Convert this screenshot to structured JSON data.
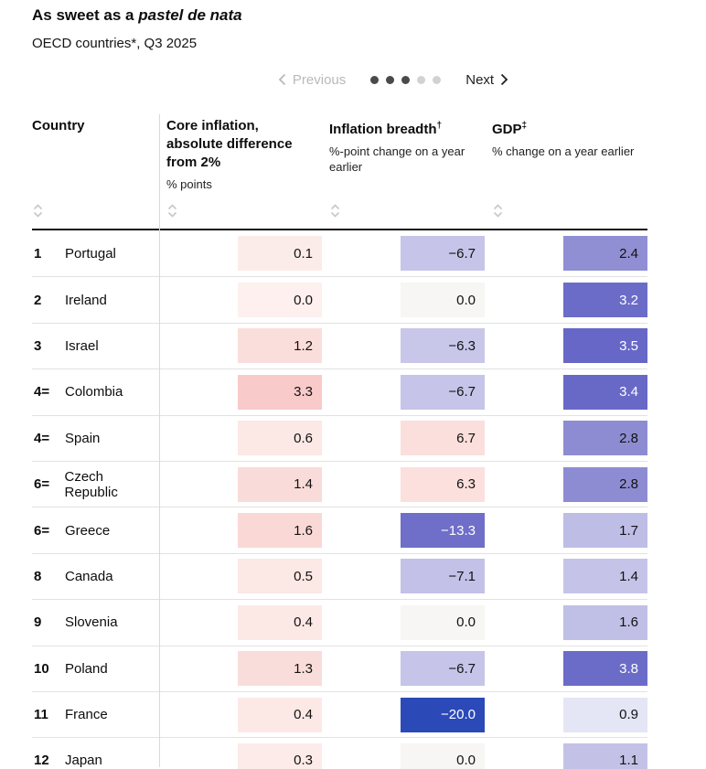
{
  "header": {
    "title_prefix": "As sweet as a ",
    "title_italic": "pastel de nata",
    "subtitle": "OECD countries*, Q3 2025"
  },
  "pagination": {
    "previous_label": "Previous",
    "next_label": "Next",
    "dots": [
      true,
      true,
      true,
      false,
      false
    ]
  },
  "table": {
    "columns": [
      {
        "label": "Country",
        "sublabel": ""
      },
      {
        "label": "Core inflation, absolute difference from 2%",
        "sublabel": "% points"
      },
      {
        "label": "Inflation breadth",
        "superscript": "†",
        "sublabel": "%-point change on a year earlier"
      },
      {
        "label": "GDP",
        "superscript": "‡",
        "sublabel": "% change on a year earlier"
      }
    ],
    "rows": [
      {
        "rank": "1",
        "country": "Portugal",
        "core": {
          "value": "0.1",
          "bg": "#fcece9",
          "fg": "#121212"
        },
        "breadth": {
          "value": "−6.7",
          "bg": "#c6c4e8",
          "fg": "#121212"
        },
        "gdp": {
          "value": "2.4",
          "bg": "#908fd4",
          "fg": "#121212"
        }
      },
      {
        "rank": "2",
        "country": "Ireland",
        "core": {
          "value": "0.0",
          "bg": "#fdf0ee",
          "fg": "#121212"
        },
        "breadth": {
          "value": "0.0",
          "bg": "#f7f6f4",
          "fg": "#121212"
        },
        "gdp": {
          "value": "3.2",
          "bg": "#6b6cc8",
          "fg": "#ffffff"
        }
      },
      {
        "rank": "3",
        "country": "Israel",
        "core": {
          "value": "1.2",
          "bg": "#fadedb",
          "fg": "#121212"
        },
        "breadth": {
          "value": "−6.3",
          "bg": "#c8c6e9",
          "fg": "#121212"
        },
        "gdp": {
          "value": "3.5",
          "bg": "#6667c6",
          "fg": "#ffffff"
        }
      },
      {
        "rank": "4=",
        "country": "Colombia",
        "core": {
          "value": "3.3",
          "bg": "#f8caca",
          "fg": "#121212"
        },
        "breadth": {
          "value": "−6.7",
          "bg": "#c6c4e8",
          "fg": "#121212"
        },
        "gdp": {
          "value": "3.4",
          "bg": "#6869c7",
          "fg": "#ffffff"
        }
      },
      {
        "rank": "4=",
        "country": "Spain",
        "core": {
          "value": "0.6",
          "bg": "#fce8e5",
          "fg": "#121212"
        },
        "breadth": {
          "value": "6.7",
          "bg": "#fbdfdc",
          "fg": "#121212"
        },
        "gdp": {
          "value": "2.8",
          "bg": "#8d8cd2",
          "fg": "#121212"
        }
      },
      {
        "rank": "6=",
        "country": "Czech Republic",
        "core": {
          "value": "1.4",
          "bg": "#f9dcd9",
          "fg": "#121212"
        },
        "breadth": {
          "value": "6.3",
          "bg": "#fbe0dd",
          "fg": "#121212"
        },
        "gdp": {
          "value": "2.8",
          "bg": "#8d8cd2",
          "fg": "#121212"
        }
      },
      {
        "rank": "6=",
        "country": "Greece",
        "core": {
          "value": "1.6",
          "bg": "#f9d8d5",
          "fg": "#121212"
        },
        "breadth": {
          "value": "−13.3",
          "bg": "#6f6ec8",
          "fg": "#ffffff"
        },
        "gdp": {
          "value": "1.7",
          "bg": "#bebde6",
          "fg": "#121212"
        }
      },
      {
        "rank": "8",
        "country": "Canada",
        "core": {
          "value": "0.5",
          "bg": "#fce8e5",
          "fg": "#121212"
        },
        "breadth": {
          "value": "−7.1",
          "bg": "#c3c1e7",
          "fg": "#121212"
        },
        "gdp": {
          "value": "1.4",
          "bg": "#c5c4e8",
          "fg": "#121212"
        }
      },
      {
        "rank": "9",
        "country": "Slovenia",
        "core": {
          "value": "0.4",
          "bg": "#fce9e6",
          "fg": "#121212"
        },
        "breadth": {
          "value": "0.0",
          "bg": "#f7f6f4",
          "fg": "#121212"
        },
        "gdp": {
          "value": "1.6",
          "bg": "#c0bfe6",
          "fg": "#121212"
        }
      },
      {
        "rank": "10",
        "country": "Poland",
        "core": {
          "value": "1.3",
          "bg": "#f9ddda",
          "fg": "#121212"
        },
        "breadth": {
          "value": "−6.7",
          "bg": "#c6c4e8",
          "fg": "#121212"
        },
        "gdp": {
          "value": "3.8",
          "bg": "#6b6cc8",
          "fg": "#ffffff"
        }
      },
      {
        "rank": "11",
        "country": "France",
        "core": {
          "value": "0.4",
          "bg": "#fce9e6",
          "fg": "#121212"
        },
        "breadth": {
          "value": "−20.0",
          "bg": "#2c49b8",
          "fg": "#ffffff"
        },
        "gdp": {
          "value": "0.9",
          "bg": "#e4e6f5",
          "fg": "#121212"
        }
      },
      {
        "rank": "12",
        "country": "Japan",
        "core": {
          "value": "0.3",
          "bg": "#fcebe8",
          "fg": "#121212"
        },
        "breadth": {
          "value": "0.0",
          "bg": "#f7f6f4",
          "fg": "#121212"
        },
        "gdp": {
          "value": "1.1",
          "bg": "#c3c2e6",
          "fg": "#121212"
        }
      }
    ]
  },
  "chart_data": {
    "type": "table",
    "title": "As sweet as a pastel de nata",
    "subtitle": "OECD countries*, Q3 2025",
    "categories": [
      "Portugal",
      "Ireland",
      "Israel",
      "Colombia",
      "Spain",
      "Czech Republic",
      "Greece",
      "Canada",
      "Slovenia",
      "Poland",
      "France",
      "Japan"
    ],
    "ranks": [
      "1",
      "2",
      "3",
      "4=",
      "4=",
      "6=",
      "6=",
      "8",
      "9",
      "10",
      "11",
      "12"
    ],
    "series": [
      {
        "name": "Core inflation, absolute difference from 2% (% points)",
        "values": [
          0.1,
          0.0,
          1.2,
          3.3,
          0.6,
          1.4,
          1.6,
          0.5,
          0.4,
          1.3,
          0.4,
          0.3
        ]
      },
      {
        "name": "Inflation breadth (%-point change on a year earlier)",
        "values": [
          -6.7,
          0.0,
          -6.3,
          -6.7,
          6.7,
          6.3,
          -13.3,
          -7.1,
          0.0,
          -6.7,
          -20.0,
          0.0
        ]
      },
      {
        "name": "GDP (% change on a year earlier)",
        "values": [
          2.4,
          3.2,
          3.5,
          3.4,
          2.8,
          2.8,
          1.7,
          1.4,
          1.6,
          3.8,
          0.9,
          1.1
        ]
      }
    ],
    "layout": {
      "heatmap_negative_color": "#2c49b8",
      "heatmap_positive_color": "#f49a9a",
      "gdp_scale_color": "#5d5fc2",
      "pagination_page": "3 of 5"
    }
  }
}
